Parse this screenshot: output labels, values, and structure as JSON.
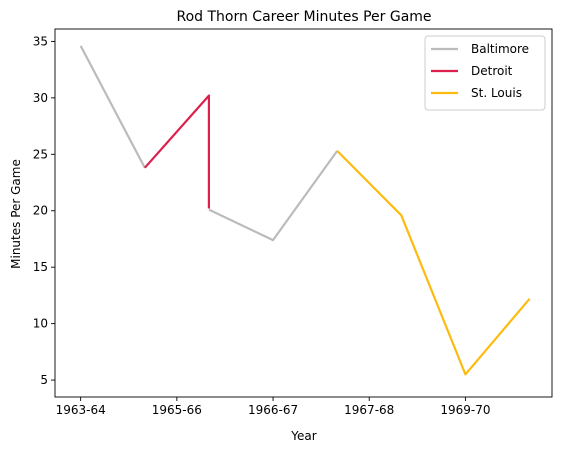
{
  "chart_data": {
    "type": "line",
    "title": "Rod Thorn Career Minutes Per Game",
    "xlabel": "Year",
    "ylabel": "Minutes Per Game",
    "x_ticks": [
      {
        "x": 0,
        "label": "1963-64"
      },
      {
        "x": 1.5,
        "label": "1965-66"
      },
      {
        "x": 3,
        "label": "1966-67"
      },
      {
        "x": 4.5,
        "label": "1967-68"
      },
      {
        "x": 6,
        "label": "1969-70"
      }
    ],
    "y_ticks": [
      5,
      10,
      15,
      20,
      25,
      30,
      35
    ],
    "xlim": [
      -0.4,
      7.35
    ],
    "ylim": [
      3.5,
      36.1
    ],
    "grid": false,
    "legend_position": "top-right",
    "series": [
      {
        "name": "Baltimore",
        "color": "#bbbbbb",
        "segments": [
          [
            [
              0,
              34.6
            ],
            [
              1.0,
              23.8
            ]
          ],
          [
            [
              2.0,
              20.1
            ],
            [
              3.0,
              17.4
            ],
            [
              4.0,
              25.3
            ]
          ]
        ]
      },
      {
        "name": "Detroit",
        "color": "#dc1f4d",
        "segments": [
          [
            [
              1.0,
              23.8
            ],
            [
              2.0,
              30.2
            ],
            [
              2.0,
              20.2
            ]
          ]
        ]
      },
      {
        "name": "St. Louis",
        "color": "#fdbb0f",
        "segments": [
          [
            [
              4.0,
              25.3
            ],
            [
              5.0,
              19.6
            ],
            [
              6.0,
              5.5
            ],
            [
              7.0,
              12.2
            ]
          ]
        ]
      }
    ]
  }
}
